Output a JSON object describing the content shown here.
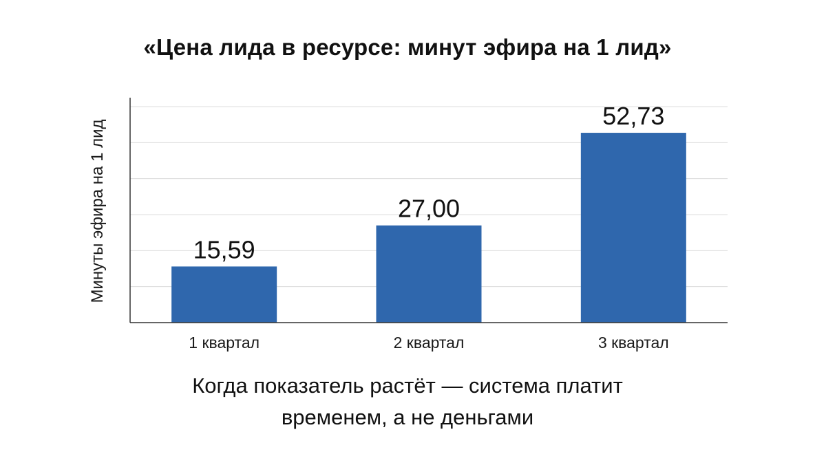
{
  "chart_data": {
    "type": "bar",
    "title": "«Цена лида в ресурсе: минут эфира на 1 лид»",
    "xlabel": "",
    "ylabel": "Минуты эфира на 1 лид",
    "categories": [
      "1 квартал",
      "2 квартал",
      "3 квартал"
    ],
    "values": [
      15.59,
      27.0,
      52.73
    ],
    "data_labels": [
      "15,59",
      "27,00",
      "52,73"
    ],
    "ylim": [
      0,
      60
    ],
    "grid": true,
    "legend": "none",
    "bar_color": "#2f67ad"
  },
  "caption": {
    "line1": "Когда показатель растёт — система платит",
    "line2": "временем, а не деньгами"
  }
}
